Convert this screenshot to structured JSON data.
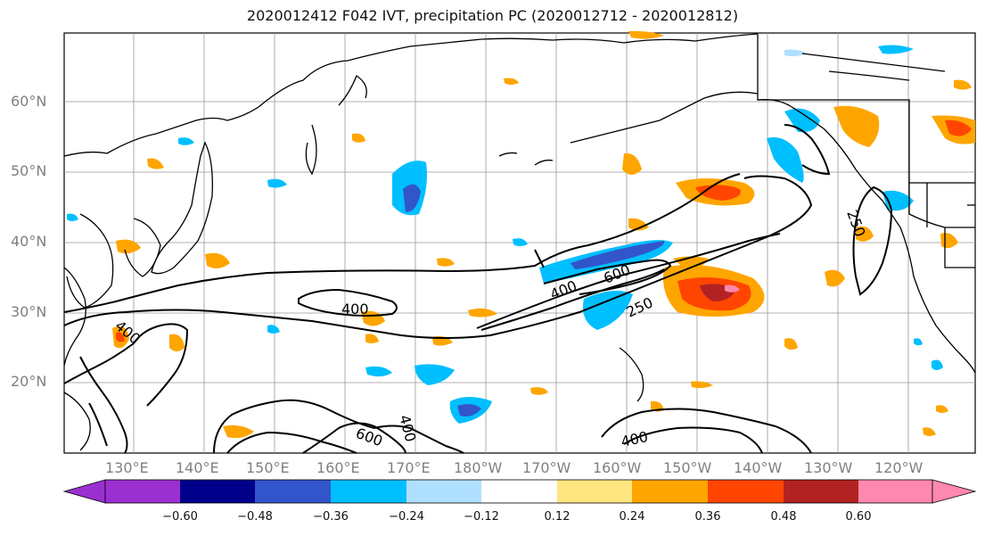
{
  "title": "2020012412 F042 IVT, precipitation PC (2020012712 - 2020012812)",
  "map": {
    "projection": "equirectangular",
    "lon_range": [
      "120°E",
      "115°W"
    ],
    "lat_range": [
      "10°N",
      "70°N"
    ],
    "gridlines": true,
    "contour_field": "IVT",
    "contour_labels": [
      "400",
      "600",
      "400",
      "250",
      "400",
      "600",
      "400",
      "400",
      "250"
    ],
    "lat_ticks": [
      "60°N",
      "50°N",
      "40°N",
      "30°N",
      "20°N"
    ],
    "lon_ticks": [
      "130°E",
      "140°E",
      "150°E",
      "160°E",
      "170°E",
      "180°W",
      "170°W",
      "160°W",
      "150°W",
      "140°W",
      "130°W",
      "120°W"
    ]
  },
  "colorbar": {
    "field": "precipitation PC",
    "labels": [
      "−0.60",
      "−0.48",
      "−0.36",
      "−0.24",
      "−0.12",
      "0.12",
      "0.24",
      "0.36",
      "0.48",
      "0.60"
    ],
    "colors": [
      "#9b30d0",
      "#00008b",
      "#3355cc",
      "#00bfff",
      "#b0e0ff",
      "#ffffff",
      "#ffe680",
      "#ffa500",
      "#ff4500",
      "#b22222",
      "#ff88b0"
    ],
    "extend": "both"
  }
}
